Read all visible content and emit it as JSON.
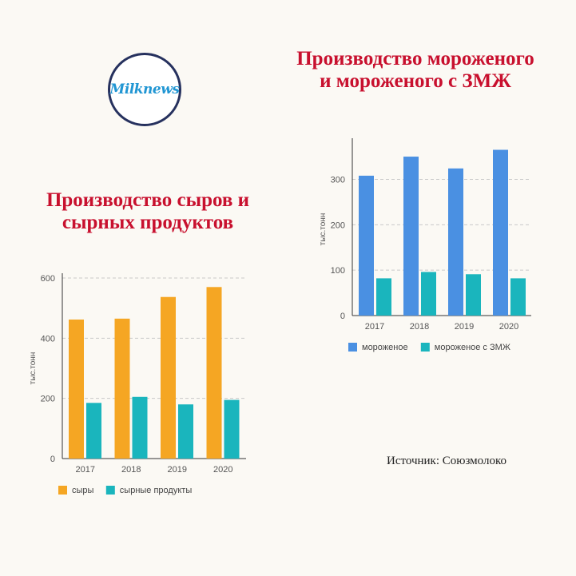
{
  "logo": {
    "text": "Milknews"
  },
  "source": "Источник: Союзмолоко",
  "chart_data": [
    {
      "type": "bar",
      "title": "Производство мороженого\nи мороженого с ЗМЖ",
      "ylabel": "тыс.тонн",
      "xlabel": "",
      "ylim": [
        0,
        380
      ],
      "yticks": [
        0,
        100,
        200,
        300
      ],
      "categories": [
        "2017",
        "2018",
        "2019",
        "2020"
      ],
      "grid": true,
      "legend": "bottom",
      "series": [
        {
          "name": "мороженое",
          "color": "#4a90e2",
          "values": [
            308,
            350,
            324,
            365
          ]
        },
        {
          "name": "мороженое с ЗМЖ",
          "color": "#1ab5bd",
          "values": [
            82,
            96,
            91,
            82
          ]
        }
      ]
    },
    {
      "type": "bar",
      "title": "Производство сыров и\nсырных продуктов",
      "ylabel": "тыс.тонн",
      "xlabel": "",
      "ylim": [
        0,
        600
      ],
      "yticks": [
        0,
        200,
        400,
        600
      ],
      "categories": [
        "2017",
        "2018",
        "2019",
        "2020"
      ],
      "grid": true,
      "legend": "bottom",
      "series": [
        {
          "name": "сыры",
          "color": "#f5a623",
          "values": [
            462,
            465,
            537,
            570
          ]
        },
        {
          "name": "сырные продукты",
          "color": "#1ab5bd",
          "values": [
            185,
            205,
            180,
            195
          ]
        }
      ]
    }
  ]
}
